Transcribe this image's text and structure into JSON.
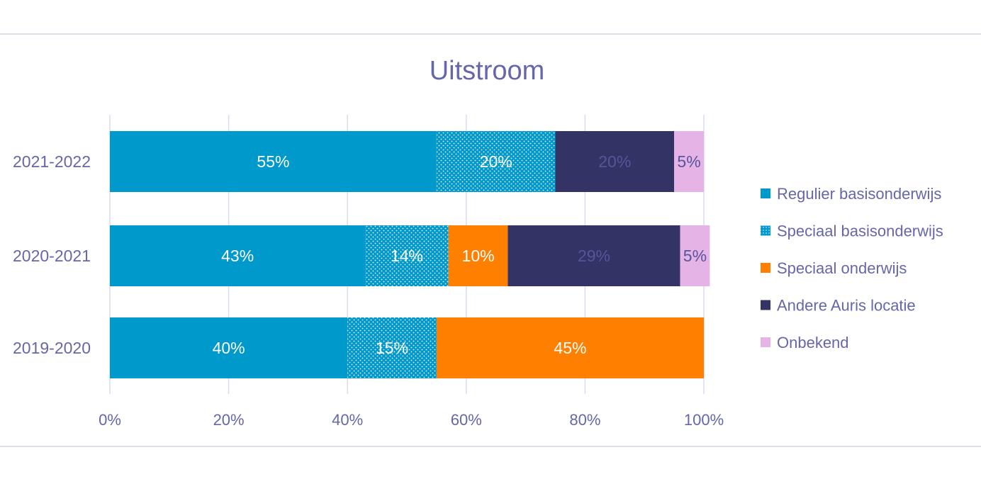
{
  "chart_data": {
    "type": "bar",
    "orientation": "horizontal",
    "stacked": "100%",
    "title": "Uitstroom",
    "xlabel": "",
    "ylabel": "",
    "xlim": [
      0,
      100
    ],
    "x_ticks": [
      "0%",
      "20%",
      "40%",
      "60%",
      "80%",
      "100%"
    ],
    "categories": [
      "2021-2022",
      "2020-2021",
      "2019-2020"
    ],
    "series": [
      {
        "name": "Regulier basisonderwijs",
        "color": "#0099cc",
        "pattern": "solid",
        "label_color": "#ffffff",
        "values": [
          55,
          43,
          40
        ],
        "labels": [
          "55%",
          "43%",
          "40%"
        ]
      },
      {
        "name": "Speciaal basisonderwijs",
        "color": "#0099cc",
        "pattern": "dotted",
        "label_color": "#ffffff",
        "values": [
          20,
          14,
          15
        ],
        "labels": [
          "20%",
          "14%",
          "15%"
        ]
      },
      {
        "name": "Speciaal onderwijs",
        "color": "#ff8000",
        "pattern": "solid",
        "label_color": "#ffffff",
        "values": [
          0,
          10,
          45
        ],
        "labels": [
          "",
          "10%",
          "45%"
        ]
      },
      {
        "name": "Andere Auris locatie",
        "color": "#333366",
        "pattern": "solid",
        "label_color": "#55559a",
        "values": [
          20,
          29,
          0
        ],
        "labels": [
          "20%",
          "29%",
          ""
        ]
      },
      {
        "name": "Onbekend",
        "color": "#e6b3e6",
        "pattern": "solid",
        "label_color": "#55559a",
        "values": [
          5,
          5,
          0
        ],
        "labels": [
          "5%",
          "5%",
          ""
        ]
      }
    ],
    "grid": "vertical",
    "legend_position": "right"
  }
}
